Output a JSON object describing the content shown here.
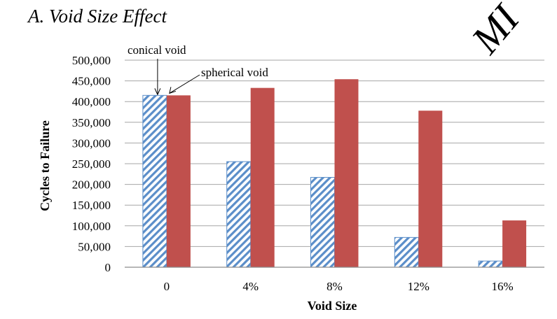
{
  "section_title": "A.   Void Size Effect",
  "watermark": "MI",
  "colors": {
    "conical_void": "#5b8ec9",
    "spherical_void": "#c0504d",
    "grid": "#a6a6a6",
    "watermark": "#000000"
  },
  "chart_data": {
    "type": "bar",
    "title": "",
    "xlabel": "Void Size",
    "ylabel": "Cycles to Failure",
    "categories": [
      "0",
      "4%",
      "8%",
      "12%",
      "16%"
    ],
    "series": [
      {
        "name": "conical void",
        "pattern": "diagonal-hatch",
        "values": [
          415000,
          255000,
          217000,
          72000,
          15000
        ]
      },
      {
        "name": "spherical void",
        "pattern": "solid",
        "values": [
          415000,
          433000,
          454000,
          378000,
          113000
        ]
      }
    ],
    "ylim": [
      0,
      500000
    ],
    "yticks": [
      0,
      50000,
      100000,
      150000,
      200000,
      250000,
      300000,
      350000,
      400000,
      450000,
      500000
    ],
    "ytick_labels": [
      "0",
      "50,000",
      "100,000",
      "150,000",
      "200,000",
      "250,000",
      "300,000",
      "350,000",
      "400,000",
      "450,000",
      "500,000"
    ],
    "grid": "horizontal",
    "legend": "none (series named by arrow annotations)",
    "annotations": [
      {
        "text": "conical void",
        "points_to": {
          "series": "conical void",
          "category": "0"
        }
      },
      {
        "text": "spherical void",
        "points_to": {
          "series": "spherical void",
          "category": "0"
        }
      }
    ]
  }
}
